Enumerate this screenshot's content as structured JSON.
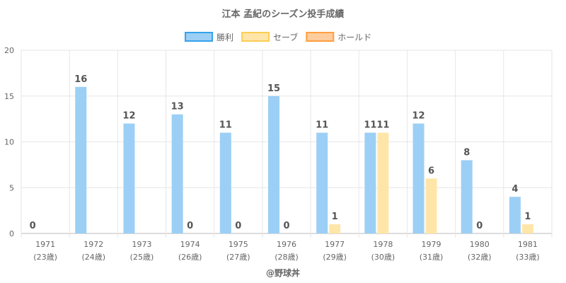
{
  "chart_data": {
    "type": "bar",
    "title": "江本 孟紀のシーズン投手成績",
    "categories": [
      "1971",
      "1972",
      "1973",
      "1974",
      "1975",
      "1976",
      "1977",
      "1978",
      "1979",
      "1980",
      "1981"
    ],
    "sublabels": [
      "(23歳)",
      "(24歳)",
      "(25歳)",
      "(26歳)",
      "(27歳)",
      "(28歳)",
      "(29歳)",
      "(30歳)",
      "(31歳)",
      "(32歳)",
      "(33歳)"
    ],
    "series": [
      {
        "name": "勝利",
        "color": "#9ccff5",
        "border": "#36a2eb",
        "values": [
          0,
          16,
          12,
          13,
          11,
          15,
          11,
          11,
          12,
          8,
          4
        ]
      },
      {
        "name": "セーブ",
        "color": "#ffe6a8",
        "border": "#ffcd56",
        "values": [
          null,
          null,
          null,
          0,
          0,
          0,
          1,
          11,
          6,
          0,
          1
        ]
      },
      {
        "name": "ホールド",
        "color": "#ffcc9c",
        "border": "#ff9f40",
        "values": [
          null,
          null,
          null,
          null,
          null,
          null,
          null,
          null,
          null,
          null,
          null
        ]
      }
    ],
    "ylim": [
      0,
      20
    ],
    "yticks": [
      0,
      5,
      10,
      15,
      20
    ],
    "grid": true,
    "legend": "top",
    "footer": "@野球丼"
  }
}
